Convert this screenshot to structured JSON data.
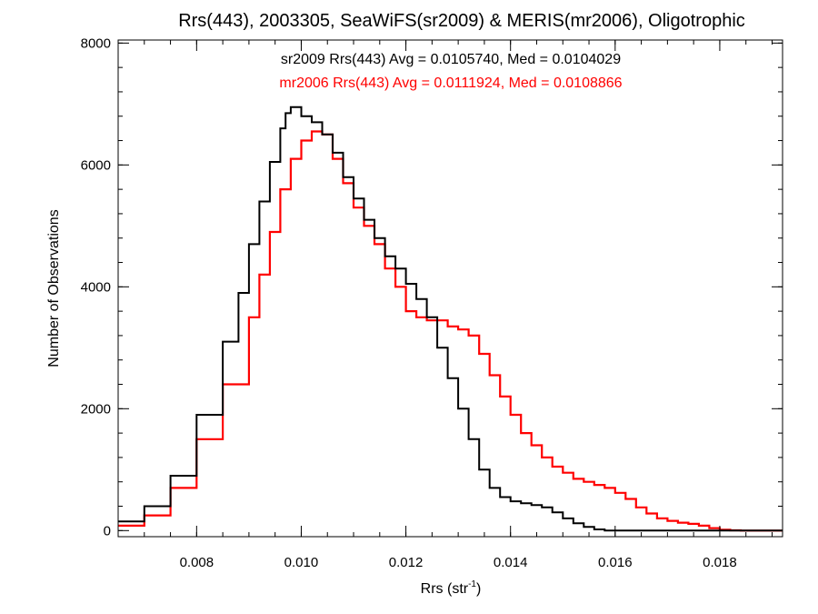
{
  "chart_data": {
    "type": "histogram",
    "title": "Rrs(443), 2003305, SeaWiFS(sr2009) & MERIS(mr2006), Oligotrophic",
    "xlabel": "Rrs (str",
    "xlabel_sup": "-1",
    "xlabel_close": ")",
    "ylabel": "Number of Observations",
    "xlim": [
      0.0065,
      0.0192
    ],
    "ylim": [
      -100,
      8050
    ],
    "x_ticks": [
      0.008,
      0.01,
      0.012,
      0.014,
      0.016,
      0.018
    ],
    "x_tick_labels": [
      "0.008",
      "0.010",
      "0.012",
      "0.014",
      "0.016",
      "0.018"
    ],
    "y_ticks": [
      0,
      2000,
      4000,
      6000,
      8000
    ],
    "y_tick_labels": [
      "0",
      "2000",
      "4000",
      "6000",
      "8000"
    ],
    "annotations": [
      {
        "text": "sr2009 Rrs(443) Avg = 0.0105740, Med = 0.0104029",
        "color": "#000000"
      },
      {
        "text": "mr2006 Rrs(443) Avg = 0.0111924, Med = 0.0108866",
        "color": "#ff0000"
      }
    ],
    "series": [
      {
        "name": "sr2009",
        "color": "#000000",
        "x": [
          0.0065,
          0.007,
          0.0075,
          0.008,
          0.0085,
          0.0088,
          0.009,
          0.0092,
          0.0094,
          0.0096,
          0.0097,
          0.0098,
          0.01,
          0.0102,
          0.0104,
          0.0106,
          0.0108,
          0.011,
          0.0112,
          0.0114,
          0.0116,
          0.0118,
          0.012,
          0.0122,
          0.0124,
          0.0126,
          0.0128,
          0.013,
          0.0132,
          0.0134,
          0.0136,
          0.0138,
          0.014,
          0.0142,
          0.0144,
          0.0146,
          0.0148,
          0.015,
          0.0152,
          0.0154,
          0.0156,
          0.0158,
          0.016,
          0.0165,
          0.017,
          0.0175,
          0.018,
          0.0192
        ],
        "y": [
          150,
          400,
          900,
          1900,
          3100,
          3900,
          4700,
          5400,
          6050,
          6600,
          6850,
          6950,
          6800,
          6700,
          6500,
          6200,
          5800,
          5450,
          5100,
          4800,
          4500,
          4300,
          4050,
          3800,
          3500,
          3000,
          2500,
          2000,
          1500,
          1000,
          700,
          550,
          480,
          450,
          420,
          380,
          300,
          200,
          120,
          60,
          20,
          0,
          0,
          0,
          0,
          0,
          0,
          0
        ]
      },
      {
        "name": "mr2006",
        "color": "#ff0000",
        "x": [
          0.0065,
          0.007,
          0.0075,
          0.008,
          0.0085,
          0.009,
          0.0092,
          0.0094,
          0.0096,
          0.0098,
          0.01,
          0.0102,
          0.0104,
          0.0106,
          0.0108,
          0.011,
          0.0112,
          0.0114,
          0.0116,
          0.0118,
          0.012,
          0.0122,
          0.0124,
          0.0126,
          0.0128,
          0.013,
          0.0132,
          0.0134,
          0.0136,
          0.0138,
          0.014,
          0.0142,
          0.0144,
          0.0146,
          0.0148,
          0.015,
          0.0152,
          0.0154,
          0.0156,
          0.0158,
          0.016,
          0.0162,
          0.0164,
          0.0166,
          0.0168,
          0.017,
          0.0172,
          0.0174,
          0.0176,
          0.0178,
          0.018,
          0.0182,
          0.0184,
          0.0192
        ],
        "y": [
          80,
          250,
          700,
          1500,
          2400,
          3500,
          4200,
          4900,
          5600,
          6100,
          6400,
          6550,
          6500,
          6100,
          5700,
          5300,
          5000,
          4700,
          4300,
          4000,
          3600,
          3500,
          3450,
          3450,
          3350,
          3300,
          3200,
          2900,
          2550,
          2200,
          1900,
          1600,
          1400,
          1200,
          1050,
          950,
          850,
          800,
          750,
          700,
          620,
          520,
          380,
          280,
          200,
          160,
          130,
          110,
          80,
          40,
          15,
          5,
          0,
          0
        ]
      }
    ],
    "grid": false
  }
}
